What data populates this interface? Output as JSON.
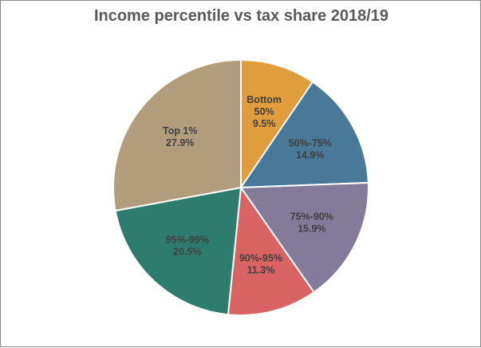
{
  "chart_data": {
    "type": "pie",
    "title": "Income percentile vs tax share 2018/19",
    "slices": [
      {
        "name": "Bottom 50%",
        "label_lines": [
          "Bottom",
          "50%"
        ],
        "value": 9.5,
        "value_label": "9.5%",
        "color": "#E19D3B"
      },
      {
        "name": "50%-75%",
        "label_lines": [
          "50%-75%"
        ],
        "value": 14.9,
        "value_label": "14.9%",
        "color": "#487999"
      },
      {
        "name": "75%-90%",
        "label_lines": [
          "75%-90%"
        ],
        "value": 15.9,
        "value_label": "15.9%",
        "color": "#847B9A"
      },
      {
        "name": "90%-95%",
        "label_lines": [
          "90%-95%"
        ],
        "value": 11.3,
        "value_label": "11.3%",
        "color": "#D96262"
      },
      {
        "name": "95%-99%",
        "label_lines": [
          "95%-99%"
        ],
        "value": 20.5,
        "value_label": "20.5%",
        "color": "#2D7C6D"
      },
      {
        "name": "Top 1%",
        "label_lines": [
          "Top 1%"
        ],
        "value": 27.9,
        "value_label": "27.9%",
        "color": "#B19C7C"
      }
    ],
    "start_angle": "12 o'clock",
    "direction": "clockwise",
    "legend": "none"
  }
}
